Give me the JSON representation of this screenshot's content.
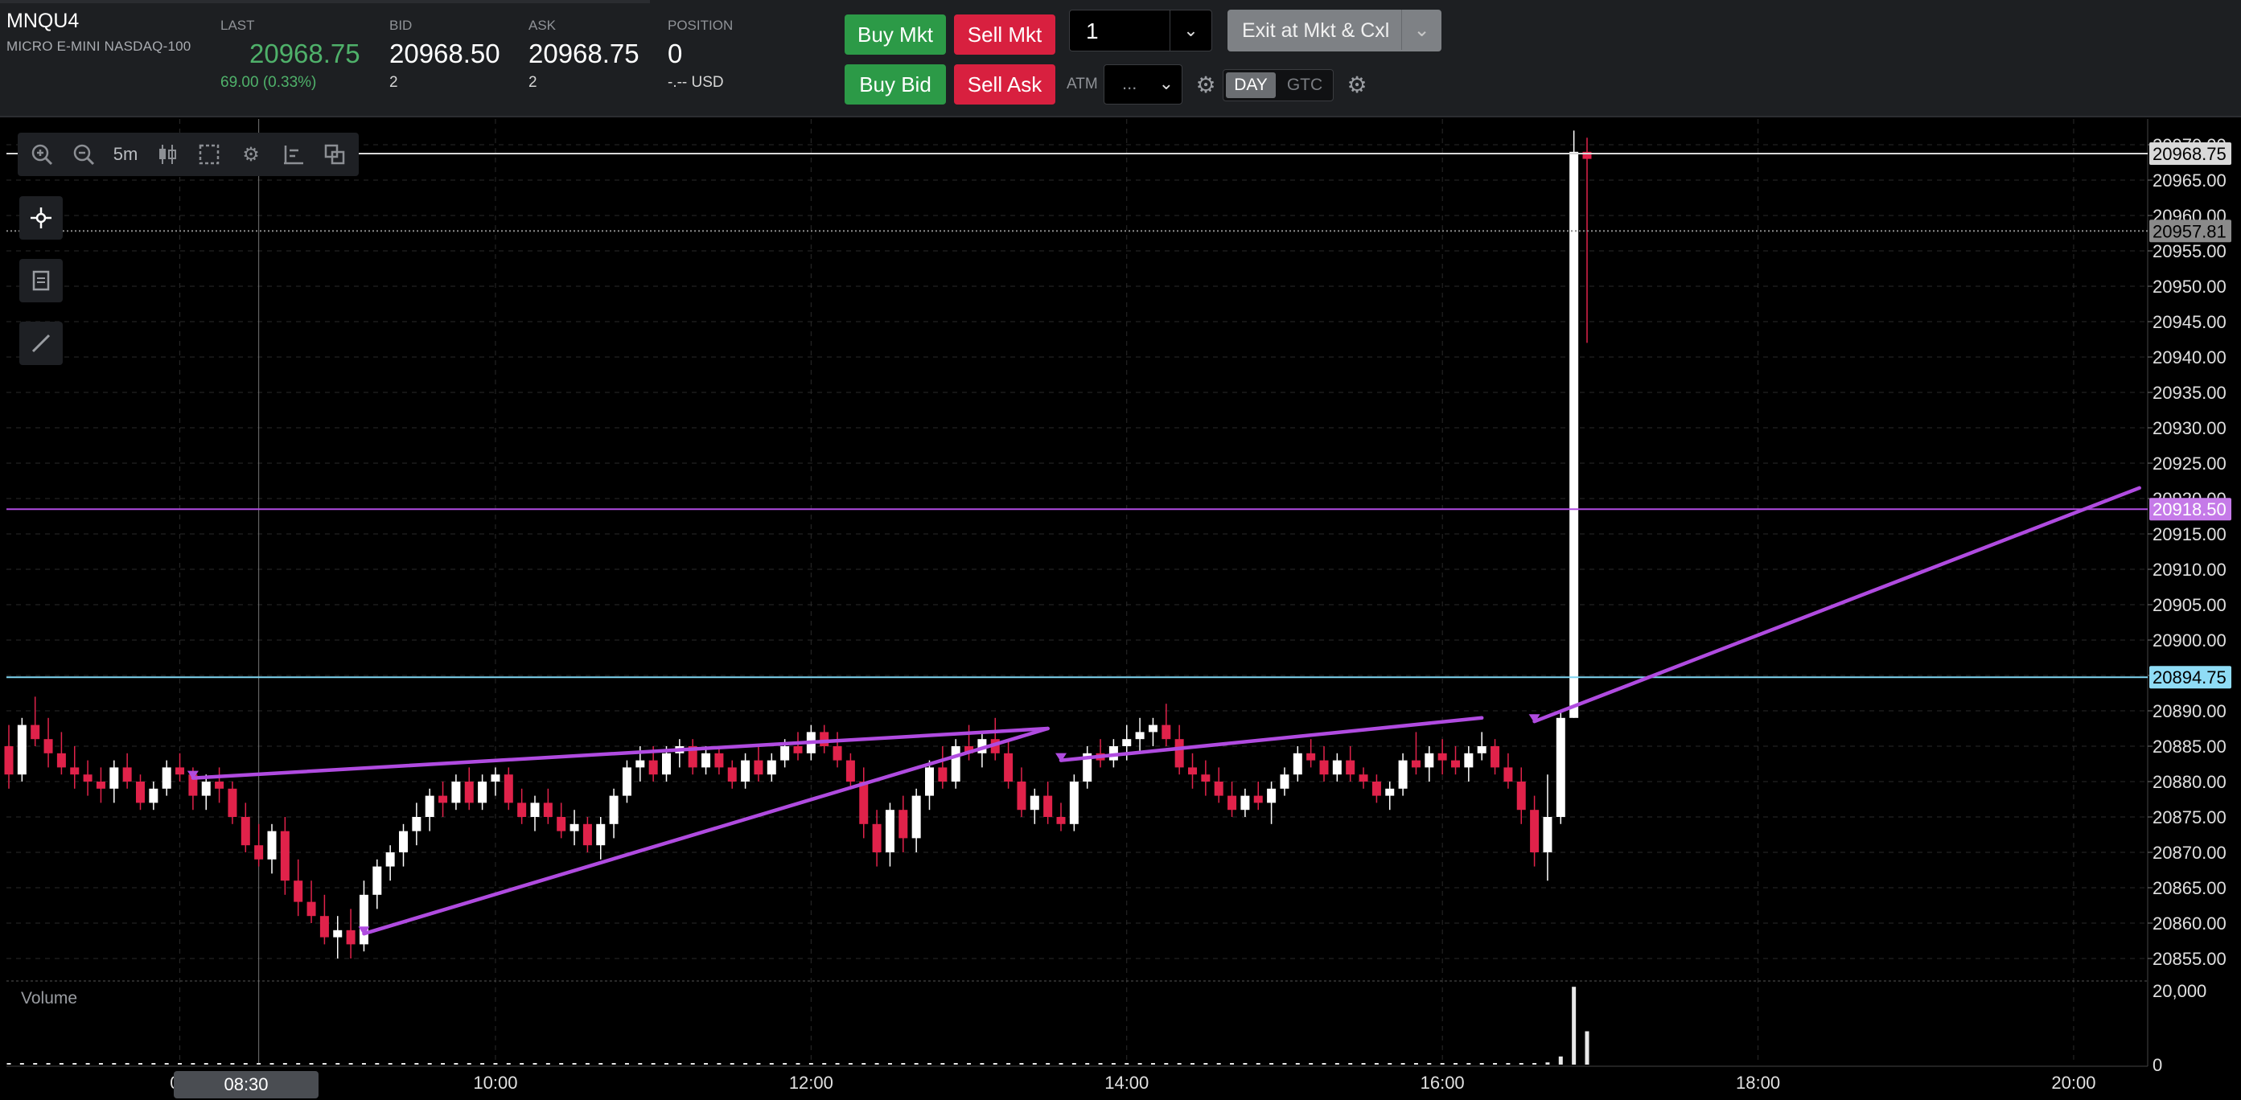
{
  "header": {
    "symbol": "MNQU4",
    "description": "MICRO E-MINI NASDAQ-100",
    "last": {
      "label": "LAST",
      "value": "20968.75",
      "change": "69.00 (0.33%)"
    },
    "bid": {
      "label": "BID",
      "value": "20968.50",
      "size": "2"
    },
    "ask": {
      "label": "ASK",
      "value": "20968.75",
      "size": "2"
    },
    "position": {
      "label": "POSITION",
      "value": "0",
      "pnl": "-.-- USD"
    }
  },
  "order_entry": {
    "buy_mkt": "Buy Mkt",
    "sell_mkt": "Sell Mkt",
    "buy_bid": "Buy Bid",
    "sell_ask": "Sell Ask",
    "quantity": "1",
    "exit_button": "Exit at Mkt & Cxl",
    "atm_label": "ATM",
    "atm_value": "...",
    "tif_day": "DAY",
    "tif_gtc": "GTC"
  },
  "colors": {
    "up_candle": "#ffffff",
    "down_candle": "#e0224a",
    "buy": "#2c9a47",
    "sell": "#d8203f",
    "purple_line": "#b04be0",
    "cyan_line": "#7fd6f2"
  },
  "toolbar": {
    "timeframe": "5m",
    "icons": [
      "zoom-in-icon",
      "zoom-out-icon",
      "timeframe",
      "candlestick-icon",
      "selection-icon",
      "gear-icon",
      "axis-icon",
      "layout-icon"
    ],
    "side_icons": [
      "crosshair-icon",
      "notes-icon",
      "draw-line-icon"
    ]
  },
  "chart": {
    "volume_label": "Volume",
    "crosshair_time": "08:30",
    "price_levels": [
      {
        "label": "20968.75",
        "price": 20968.75,
        "style": "last"
      },
      {
        "label": "20957.81",
        "price": 20957.81,
        "style": "crosshair"
      },
      {
        "label": "20918.50",
        "price": 20918.5,
        "style": "purple"
      },
      {
        "label": "20894.75",
        "price": 20894.75,
        "style": "cyan"
      }
    ]
  },
  "chart_data": {
    "type": "candlestick",
    "ylim": [
      20851,
      20972
    ],
    "y_ticks": [
      "20970.00",
      "20965.00",
      "20960.00",
      "20955.00",
      "20950.00",
      "20945.00",
      "20940.00",
      "20935.00",
      "20930.00",
      "20925.00",
      "20920.00",
      "20915.00",
      "20910.00",
      "20905.00",
      "20900.00",
      "20895.00",
      "20890.00",
      "20885.00",
      "20880.00",
      "20875.00",
      "20870.00",
      "20865.00",
      "20860.00",
      "20855.00"
    ],
    "x_ticks": [
      "08",
      "10:00",
      "12:00",
      "14:00",
      "16:00",
      "18:00",
      "20:00"
    ],
    "volume_ticks": [
      "20,000",
      "0"
    ],
    "trend_lines": [
      {
        "from": [
          "08:05",
          20880.5
        ],
        "to": [
          "13:30",
          20887.5
        ]
      },
      {
        "from": [
          "09:10",
          20858.5
        ],
        "to": [
          "13:30",
          20887.5
        ]
      },
      {
        "from": [
          "13:35",
          20883
        ],
        "to": [
          "16:15",
          20889
        ]
      },
      {
        "from": [
          "16:35",
          20888.5
        ],
        "to": [
          "20:25",
          20921.5
        ]
      }
    ],
    "anchor": {
      "time": "10:00",
      "slot": 37,
      "minutes_per_bar": 5
    },
    "candles": [
      [
        20885,
        20888,
        20879,
        20881
      ],
      [
        20881,
        20889,
        20880,
        20888
      ],
      [
        20888,
        20892,
        20885,
        20886
      ],
      [
        20886,
        20889,
        20882,
        20884
      ],
      [
        20884,
        20887,
        20881,
        20882
      ],
      [
        20882,
        20885,
        20879,
        20881
      ],
      [
        20881,
        20883,
        20878,
        20880
      ],
      [
        20880,
        20882,
        20877,
        20879
      ],
      [
        20879,
        20883,
        20877,
        20882
      ],
      [
        20882,
        20884,
        20879,
        20880
      ],
      [
        20880,
        20881,
        20876,
        20877
      ],
      [
        20877,
        20880,
        20876,
        20879
      ],
      [
        20879,
        20883,
        20878,
        20882
      ],
      [
        20882,
        20884,
        20880,
        20881
      ],
      [
        20881,
        20882,
        20876,
        20878
      ],
      [
        20878,
        20881,
        20876,
        20880
      ],
      [
        20880,
        20882,
        20877,
        20879
      ],
      [
        20879,
        20880,
        20874,
        20875
      ],
      [
        20875,
        20877,
        20870,
        20871
      ],
      [
        20871,
        20874,
        20868,
        20869
      ],
      [
        20869,
        20874,
        20867,
        20873
      ],
      [
        20873,
        20875,
        20864,
        20866
      ],
      [
        20866,
        20869,
        20861,
        20863
      ],
      [
        20863,
        20866,
        20860,
        20861
      ],
      [
        20861,
        20864,
        20857,
        20858
      ],
      [
        20858,
        20861,
        20855,
        20859
      ],
      [
        20859,
        20862,
        20855,
        20857
      ],
      [
        20857,
        20866,
        20856,
        20864
      ],
      [
        20864,
        20869,
        20862,
        20868
      ],
      [
        20868,
        20871,
        20866,
        20870
      ],
      [
        20870,
        20874,
        20868,
        20873
      ],
      [
        20873,
        20877,
        20871,
        20875
      ],
      [
        20875,
        20879,
        20873,
        20878
      ],
      [
        20878,
        20880,
        20875,
        20877
      ],
      [
        20877,
        20881,
        20876,
        20880
      ],
      [
        20880,
        20882,
        20876,
        20877
      ],
      [
        20877,
        20881,
        20876,
        20880
      ],
      [
        20880,
        20882,
        20878,
        20881
      ],
      [
        20881,
        20882,
        20876,
        20877
      ],
      [
        20877,
        20879,
        20874,
        20875
      ],
      [
        20875,
        20878,
        20873,
        20877
      ],
      [
        20877,
        20879,
        20874,
        20875
      ],
      [
        20875,
        20877,
        20872,
        20873
      ],
      [
        20873,
        20876,
        20871,
        20874
      ],
      [
        20874,
        20875,
        20870,
        20871
      ],
      [
        20871,
        20875,
        20869,
        20874
      ],
      [
        20874,
        20879,
        20872,
        20878
      ],
      [
        20878,
        20883,
        20877,
        20882
      ],
      [
        20882,
        20885,
        20880,
        20883
      ],
      [
        20883,
        20885,
        20880,
        20881
      ],
      [
        20881,
        20885,
        20880,
        20884
      ],
      [
        20884,
        20886,
        20882,
        20885
      ],
      [
        20885,
        20886,
        20881,
        20882
      ],
      [
        20882,
        20885,
        20881,
        20884
      ],
      [
        20884,
        20885,
        20881,
        20882
      ],
      [
        20882,
        20883,
        20879,
        20880
      ],
      [
        20880,
        20884,
        20879,
        20883
      ],
      [
        20883,
        20885,
        20880,
        20881
      ],
      [
        20881,
        20884,
        20880,
        20883
      ],
      [
        20883,
        20886,
        20882,
        20885
      ],
      [
        20885,
        20887,
        20883,
        20884
      ],
      [
        20884,
        20888,
        20883,
        20887
      ],
      [
        20887,
        20888,
        20884,
        20885
      ],
      [
        20885,
        20887,
        20882,
        20883
      ],
      [
        20883,
        20884,
        20879,
        20880
      ],
      [
        20880,
        20882,
        20872,
        20874
      ],
      [
        20874,
        20876,
        20868,
        20870
      ],
      [
        20870,
        20877,
        20868,
        20876
      ],
      [
        20876,
        20878,
        20870,
        20872
      ],
      [
        20872,
        20879,
        20870,
        20878
      ],
      [
        20878,
        20883,
        20876,
        20882
      ],
      [
        20882,
        20885,
        20879,
        20880
      ],
      [
        20880,
        20886,
        20879,
        20885
      ],
      [
        20885,
        20888,
        20883,
        20884
      ],
      [
        20884,
        20887,
        20882,
        20886
      ],
      [
        20886,
        20889,
        20883,
        20884
      ],
      [
        20884,
        20886,
        20879,
        20880
      ],
      [
        20880,
        20882,
        20875,
        20876
      ],
      [
        20876,
        20879,
        20874,
        20878
      ],
      [
        20878,
        20880,
        20874,
        20875
      ],
      [
        20875,
        20877,
        20873,
        20874
      ],
      [
        20874,
        20881,
        20873,
        20880
      ],
      [
        20880,
        20885,
        20879,
        20884
      ],
      [
        20884,
        20886,
        20882,
        20883
      ],
      [
        20883,
        20886,
        20882,
        20885
      ],
      [
        20885,
        20888,
        20883,
        20886
      ],
      [
        20886,
        20889,
        20884,
        20887
      ],
      [
        20887,
        20889,
        20885,
        20888
      ],
      [
        20888,
        20891,
        20885,
        20886
      ],
      [
        20886,
        20888,
        20881,
        20882
      ],
      [
        20882,
        20884,
        20879,
        20881
      ],
      [
        20881,
        20883,
        20878,
        20880
      ],
      [
        20880,
        20882,
        20877,
        20878
      ],
      [
        20878,
        20880,
        20875,
        20876
      ],
      [
        20876,
        20879,
        20875,
        20878
      ],
      [
        20878,
        20880,
        20876,
        20877
      ],
      [
        20877,
        20880,
        20874,
        20879
      ],
      [
        20879,
        20882,
        20878,
        20881
      ],
      [
        20881,
        20885,
        20880,
        20884
      ],
      [
        20884,
        20886,
        20882,
        20883
      ],
      [
        20883,
        20885,
        20880,
        20881
      ],
      [
        20881,
        20884,
        20880,
        20883
      ],
      [
        20883,
        20885,
        20880,
        20881
      ],
      [
        20881,
        20882,
        20879,
        20880
      ],
      [
        20880,
        20881,
        20877,
        20878
      ],
      [
        20878,
        20880,
        20876,
        20879
      ],
      [
        20879,
        20884,
        20878,
        20883
      ],
      [
        20883,
        20887,
        20881,
        20882
      ],
      [
        20882,
        20885,
        20880,
        20884
      ],
      [
        20884,
        20886,
        20881,
        20883
      ],
      [
        20883,
        20885,
        20881,
        20882
      ],
      [
        20882,
        20885,
        20880,
        20884
      ],
      [
        20884,
        20887,
        20883,
        20885
      ],
      [
        20885,
        20886,
        20881,
        20882
      ],
      [
        20882,
        20884,
        20879,
        20880
      ],
      [
        20880,
        20882,
        20874,
        20876
      ],
      [
        20876,
        20878,
        20868,
        20870
      ],
      [
        20870,
        20881,
        20866,
        20875
      ],
      [
        20875,
        20890,
        20874,
        20889
      ],
      [
        20889,
        20972,
        20889,
        20969
      ],
      [
        20969,
        20971,
        20942,
        20968
      ]
    ],
    "volume": [
      120,
      90,
      110,
      80,
      95,
      100,
      85,
      90,
      130,
      100,
      95,
      110,
      120,
      140,
      100,
      90,
      85,
      180,
      220,
      150,
      160,
      200,
      170,
      150,
      190,
      140,
      130,
      210,
      160,
      140,
      120,
      110,
      130,
      100,
      95,
      110,
      100,
      90,
      120,
      100,
      95,
      90,
      110,
      105,
      120,
      100,
      140,
      130,
      110,
      100,
      95,
      90,
      110,
      100,
      95,
      100,
      90,
      85,
      95,
      100,
      110,
      100,
      95,
      120,
      160,
      200,
      230,
      190,
      170,
      150,
      160,
      140,
      130,
      120,
      140,
      110,
      130,
      120,
      100,
      95,
      90,
      140,
      130,
      110,
      100,
      95,
      120,
      110,
      140,
      100,
      90,
      85,
      80,
      95,
      85,
      80,
      90,
      110,
      100,
      95,
      90,
      85,
      80,
      90,
      80,
      100,
      110,
      100,
      90,
      95,
      85,
      110,
      95,
      100,
      140,
      260,
      420,
      600,
      2200,
      21000,
      9000
    ]
  }
}
